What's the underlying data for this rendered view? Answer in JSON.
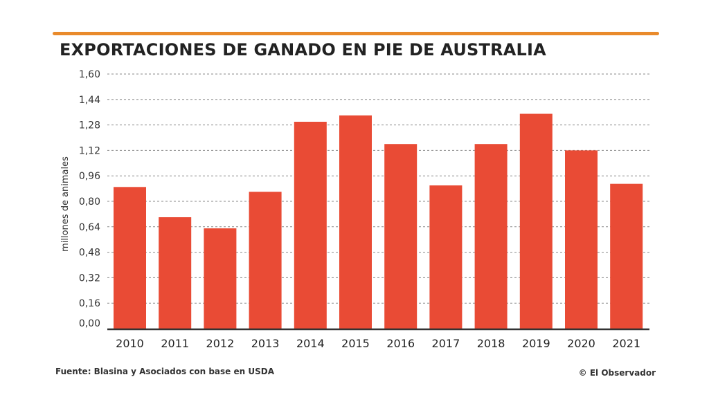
{
  "colors": {
    "accent": "#e98a2b",
    "bar": "#e94b35",
    "grid": "#8a8a8a",
    "baseline": "#333333"
  },
  "chart_data": {
    "type": "bar",
    "title": "EXPORTACIONES DE GANADO EN PIE DE AUSTRALIA",
    "ylabel": "millones de animales",
    "xlabel": "",
    "categories": [
      "2010",
      "2011",
      "2012",
      "2013",
      "2014",
      "2015",
      "2016",
      "2017",
      "2018",
      "2019",
      "2020",
      "2021"
    ],
    "values": [
      0.89,
      0.7,
      0.63,
      0.86,
      1.3,
      1.34,
      1.16,
      0.9,
      1.16,
      1.35,
      1.12,
      0.91
    ],
    "ylim": [
      0,
      1.6
    ],
    "yticks": [
      "0,00",
      "0,16",
      "0,32",
      "0,48",
      "0,64",
      "0,80",
      "0,96",
      "1,12",
      "1,28",
      "1,44",
      "1,60"
    ],
    "grid": true
  },
  "footer": {
    "source": "Fuente: Blasina y Asociados con base en USDA",
    "credit": "© El Observador"
  }
}
